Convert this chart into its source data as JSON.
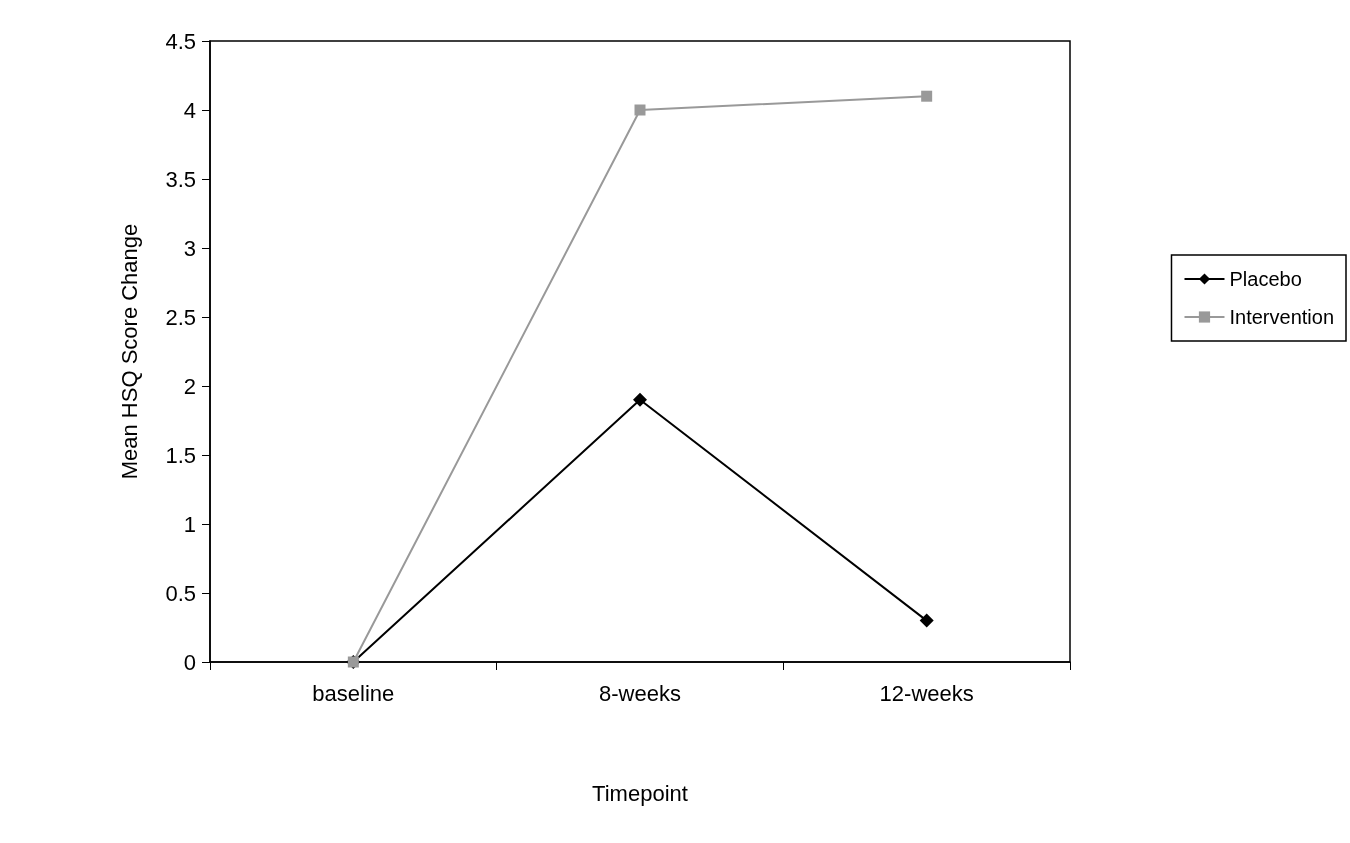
{
  "chart_data": {
    "type": "line",
    "xlabel": "Timepoint",
    "ylabel": "Mean HSQ Score Change",
    "categories": [
      "baseline",
      "8-weeks",
      "12-weeks"
    ],
    "series": [
      {
        "name": "Placebo",
        "color": "#000000",
        "marker": "diamond",
        "values": [
          0,
          1.9,
          0.3
        ]
      },
      {
        "name": "Intervention",
        "color": "#999999",
        "marker": "square",
        "values": [
          0,
          4.0,
          4.1
        ]
      }
    ],
    "ylim": [
      0,
      4.5
    ],
    "yticks": [
      0,
      0.5,
      1,
      1.5,
      2,
      2.5,
      3,
      3.5,
      4,
      4.5
    ],
    "grid": false,
    "legend": "right",
    "line_style": "solid"
  }
}
